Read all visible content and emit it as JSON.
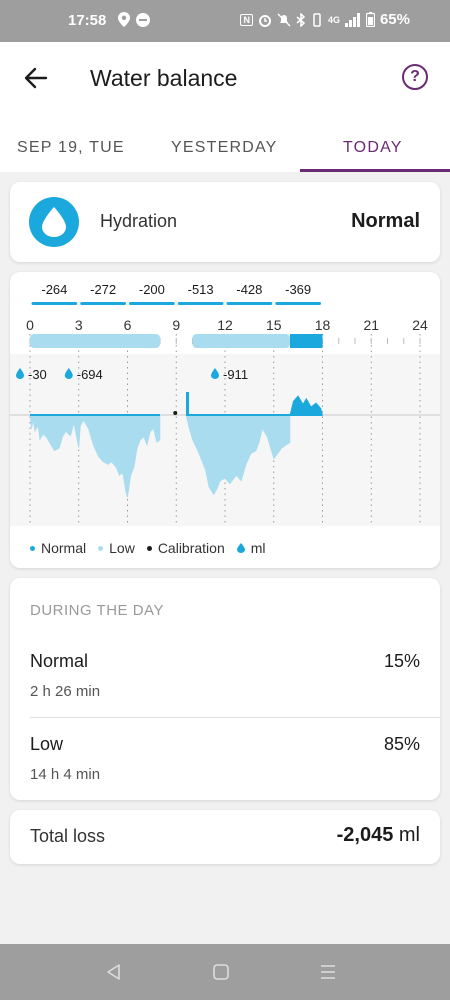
{
  "status_bar": {
    "time": "17:58",
    "battery": "65%",
    "network": "4G"
  },
  "header": {
    "title": "Water balance",
    "help_symbol": "?"
  },
  "tabs": [
    {
      "label": "SEP 19, TUE",
      "active": false
    },
    {
      "label": "YESTERDAY",
      "active": false
    },
    {
      "label": "TODAY",
      "active": true
    }
  ],
  "colors": {
    "accent": "#6b2a74",
    "normal": "#1ba9dd",
    "low": "#a9dcef"
  },
  "hydration": {
    "label": "Hydration",
    "status": "Normal"
  },
  "chart_data": {
    "type": "area",
    "x_ticks": [
      "0",
      "3",
      "6",
      "9",
      "12",
      "15",
      "18",
      "21",
      "24"
    ],
    "xlim": [
      0,
      24
    ],
    "segment_totals": [
      {
        "label": "-264",
        "start": 0,
        "end": 3
      },
      {
        "label": "-272",
        "start": 3,
        "end": 6
      },
      {
        "label": "-200",
        "start": 6,
        "end": 9
      },
      {
        "label": "-513",
        "start": 9,
        "end": 12
      },
      {
        "label": "-428",
        "start": 12,
        "end": 15
      },
      {
        "label": "-369",
        "start": 15,
        "end": 18
      }
    ],
    "intake_markers": [
      {
        "hour": 0,
        "label": "-30"
      },
      {
        "hour": 3,
        "label": "-694"
      },
      {
        "hour": 12,
        "label": "-911"
      }
    ],
    "calibration_hour": 9,
    "low_bands": [
      [
        0,
        8
      ],
      [
        10,
        16
      ]
    ],
    "normal_segment": [
      16,
      18
    ],
    "below_series": {
      "x": [
        0,
        0.1,
        0.2,
        0.3,
        0.5,
        0.6,
        0.8,
        1.0,
        1.2,
        1.5,
        1.8,
        2.0,
        2.2,
        2.5,
        2.7,
        2.9,
        3.0,
        3.1,
        3.3,
        3.6,
        3.9,
        4.2,
        4.5,
        4.8,
        5.0,
        5.3,
        5.5,
        5.7,
        5.9,
        6.0,
        6.2,
        6.4,
        6.6,
        6.8,
        7.0,
        7.2,
        7.4,
        7.6,
        7.8,
        8.0,
        8.0
      ],
      "y": [
        0,
        -25,
        -10,
        -30,
        -20,
        -45,
        -35,
        -40,
        -50,
        -65,
        -60,
        -40,
        -30,
        -38,
        -15,
        -45,
        -60,
        -20,
        -10,
        -25,
        -55,
        -75,
        -85,
        -90,
        -85,
        -95,
        -110,
        -105,
        -140,
        -150,
        -110,
        -95,
        -60,
        -45,
        -40,
        -55,
        -30,
        -25,
        -50,
        -45,
        0
      ]
    },
    "below_series_2": {
      "x": [
        9.6,
        9.8,
        10.0,
        10.4,
        10.8,
        11.0,
        11.3,
        11.5,
        11.7,
        12.0,
        12.3,
        12.7,
        13.0,
        13.3,
        13.6,
        13.9,
        14.1,
        14.3,
        14.6,
        15.0,
        15.5,
        16.0,
        16.0
      ],
      "y": [
        0,
        -25,
        -45,
        -70,
        -100,
        -130,
        -145,
        -135,
        -120,
        -115,
        -125,
        -110,
        -120,
        -90,
        -70,
        -65,
        -50,
        -25,
        -40,
        -80,
        -60,
        -50,
        0
      ]
    },
    "above_series": {
      "x": [
        16.0,
        16.2,
        16.5,
        16.8,
        17.0,
        17.3,
        17.6,
        17.9,
        18.0
      ],
      "y": [
        0,
        25,
        35,
        20,
        30,
        15,
        22,
        12,
        0
      ]
    },
    "legend": [
      {
        "label": "Normal",
        "color": "#1ba9dd"
      },
      {
        "label": "Low",
        "color": "#a9dcef"
      },
      {
        "label": "Calibration",
        "color": "#1c1c1c"
      },
      {
        "label": "ml",
        "color": "#1ba9dd"
      }
    ]
  },
  "during_day": {
    "title": "DURING THE DAY",
    "rows": [
      {
        "name": "Normal",
        "duration": "2 h 26 min",
        "percent": "15%"
      },
      {
        "name": "Low",
        "duration": "14 h 4 min",
        "percent": "85%"
      }
    ]
  },
  "total_loss": {
    "label": "Total loss",
    "value": "-2,045",
    "unit": "ml"
  }
}
